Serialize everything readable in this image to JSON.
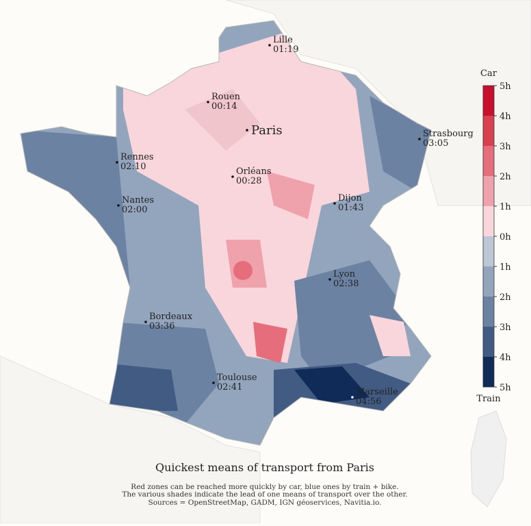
{
  "map": {
    "title": "Quickest means of transport from Paris",
    "caption": [
      "Red zones can be reached more quickly by car, blue ones by train + bike.",
      "The various shades indicate the lead of one means of transport over the other.",
      "Sources = OpenStreetMap, GADM, IGN géoservices, Navitia.io."
    ],
    "cities": [
      {
        "name": "Lille",
        "time": "01:19"
      },
      {
        "name": "Rouen",
        "time": "00:14"
      },
      {
        "name": "Paris"
      },
      {
        "name": "Strasbourg",
        "time": "03:05"
      },
      {
        "name": "Rennes",
        "time": "02:10"
      },
      {
        "name": "Orléans",
        "time": "00:28"
      },
      {
        "name": "Nantes",
        "time": "02:00"
      },
      {
        "name": "Dijon",
        "time": "01:43"
      },
      {
        "name": "Lyon",
        "time": "02:38"
      },
      {
        "name": "Bordeaux",
        "time": "03:36"
      },
      {
        "name": "Toulouse",
        "time": "02:41"
      },
      {
        "name": "Marseille",
        "time": "04:56"
      }
    ],
    "legend": {
      "top_label": "Car",
      "bottom_label": "Train",
      "ticks": [
        "5h",
        "4h",
        "3h",
        "2h",
        "1h",
        "0h",
        "1h",
        "2h",
        "3h",
        "4h",
        "5h"
      ],
      "colors": [
        "#c8102e",
        "#d8404f",
        "#e56d7c",
        "#efa1ac",
        "#f8d6db",
        "#bcc6d5",
        "#93a4bd",
        "#6c82a2",
        "#415b83",
        "#102b57"
      ]
    }
  }
}
